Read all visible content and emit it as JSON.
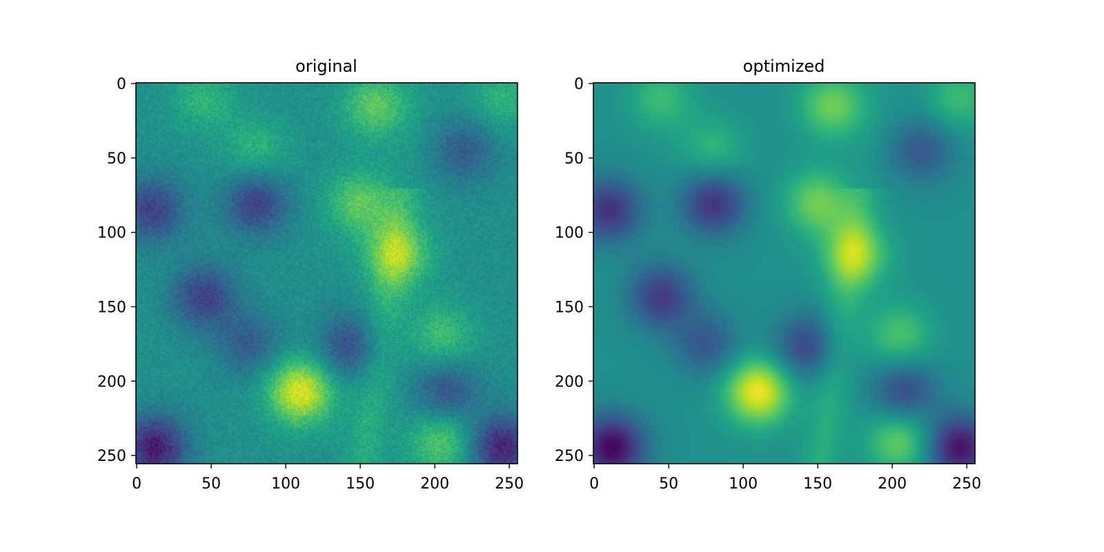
{
  "chart_data": [
    {
      "type": "heatmap",
      "title": "original",
      "colormap": "viridis",
      "noise": true,
      "x_range": [
        0,
        255
      ],
      "y_range": [
        0,
        255
      ],
      "y_axis_inverted": true,
      "x_ticks": [
        "0",
        "50",
        "100",
        "150",
        "200",
        "250"
      ],
      "y_ticks": [
        "0",
        "50",
        "100",
        "150",
        "200",
        "250"
      ],
      "features": [
        {
          "kind": "bright",
          "x": 110,
          "y": 207,
          "intensity": 0.95
        },
        {
          "kind": "bright",
          "x": 175,
          "y": 115,
          "intensity": 0.8
        },
        {
          "kind": "bright",
          "x": 150,
          "y": 80,
          "intensity": 0.75
        },
        {
          "kind": "bright",
          "x": 160,
          "y": 15,
          "intensity": 0.75
        },
        {
          "kind": "bright",
          "x": 45,
          "y": 10,
          "intensity": 0.65
        },
        {
          "kind": "bright",
          "x": 245,
          "y": 10,
          "intensity": 0.65
        },
        {
          "kind": "bright",
          "x": 80,
          "y": 45,
          "intensity": 0.65
        },
        {
          "kind": "bright",
          "x": 205,
          "y": 170,
          "intensity": 0.7
        },
        {
          "kind": "bright",
          "x": 205,
          "y": 240,
          "intensity": 0.75
        },
        {
          "kind": "dark",
          "x": 10,
          "y": 85,
          "intensity": 0.2
        },
        {
          "kind": "dark",
          "x": 80,
          "y": 80,
          "intensity": 0.2
        },
        {
          "kind": "dark",
          "x": 45,
          "y": 143,
          "intensity": 0.2
        },
        {
          "kind": "dark",
          "x": 142,
          "y": 177,
          "intensity": 0.25
        },
        {
          "kind": "dark",
          "x": 208,
          "y": 207,
          "intensity": 0.25
        },
        {
          "kind": "dark",
          "x": 12,
          "y": 245,
          "intensity": 0.08
        },
        {
          "kind": "dark",
          "x": 245,
          "y": 245,
          "intensity": 0.1
        },
        {
          "kind": "dark",
          "x": 220,
          "y": 45,
          "intensity": 0.3
        },
        {
          "kind": "dark",
          "x": 75,
          "y": 175,
          "intensity": 0.3
        }
      ]
    },
    {
      "type": "heatmap",
      "title": "optimized",
      "colormap": "viridis",
      "noise": false,
      "x_range": [
        0,
        255
      ],
      "y_range": [
        0,
        255
      ],
      "y_axis_inverted": true,
      "x_ticks": [
        "0",
        "50",
        "100",
        "150",
        "200",
        "250"
      ],
      "y_ticks": [
        "0",
        "50",
        "100",
        "150",
        "200",
        "250"
      ],
      "features": [
        {
          "kind": "bright",
          "x": 110,
          "y": 207,
          "intensity": 0.98
        },
        {
          "kind": "bright",
          "x": 175,
          "y": 115,
          "intensity": 0.82
        },
        {
          "kind": "bright",
          "x": 150,
          "y": 80,
          "intensity": 0.78
        },
        {
          "kind": "bright",
          "x": 160,
          "y": 15,
          "intensity": 0.78
        },
        {
          "kind": "bright",
          "x": 45,
          "y": 10,
          "intensity": 0.68
        },
        {
          "kind": "bright",
          "x": 245,
          "y": 10,
          "intensity": 0.68
        },
        {
          "kind": "bright",
          "x": 80,
          "y": 45,
          "intensity": 0.66
        },
        {
          "kind": "bright",
          "x": 205,
          "y": 170,
          "intensity": 0.72
        },
        {
          "kind": "bright",
          "x": 205,
          "y": 240,
          "intensity": 0.78
        },
        {
          "kind": "dark",
          "x": 10,
          "y": 85,
          "intensity": 0.15
        },
        {
          "kind": "dark",
          "x": 80,
          "y": 80,
          "intensity": 0.15
        },
        {
          "kind": "dark",
          "x": 45,
          "y": 143,
          "intensity": 0.18
        },
        {
          "kind": "dark",
          "x": 142,
          "y": 177,
          "intensity": 0.22
        },
        {
          "kind": "dark",
          "x": 208,
          "y": 207,
          "intensity": 0.22
        },
        {
          "kind": "dark",
          "x": 12,
          "y": 245,
          "intensity": 0.02
        },
        {
          "kind": "dark",
          "x": 245,
          "y": 245,
          "intensity": 0.05
        },
        {
          "kind": "dark",
          "x": 220,
          "y": 45,
          "intensity": 0.28
        },
        {
          "kind": "dark",
          "x": 75,
          "y": 175,
          "intensity": 0.28
        }
      ]
    }
  ]
}
